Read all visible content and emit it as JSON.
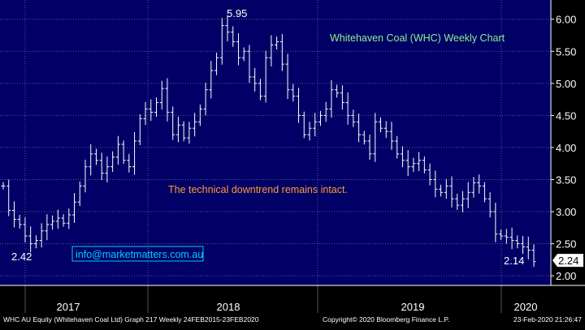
{
  "chart_data": {
    "type": "ohlc",
    "title": "Whitehaven Coal (WHC) Weekly Chart",
    "annotation": "The technical downtrend remains intact.",
    "contact": "info@marketmatters.com.au",
    "ylim": [
      1.85,
      6.3
    ],
    "y_ticks": [
      "2.00",
      "2.50",
      "3.00",
      "3.50",
      "4.00",
      "4.50",
      "5.00",
      "5.50",
      "6.00"
    ],
    "x_ticks": [
      "2017",
      "2018",
      "2019",
      "2020"
    ],
    "last_price": "2.24",
    "high_label": "5.95",
    "low_label_left": "2.42",
    "low_label_right": "2.14",
    "footer_left": "WHC AU Equity (Whitehaven Coal Ltd) Graph 217  Weekly 24FEB2015-23FEB2020",
    "footer_mid": "Copyright© 2020 Bloomberg Finance L.P.",
    "footer_right": "23-Feb-2020 21:26:47",
    "colors": {
      "background": "#000066",
      "bars": "#ffffff",
      "grid": "#5a5a9a",
      "title": "#90ee90",
      "annotation": "#ff9933",
      "contact": "#00ccff"
    },
    "series": [
      {
        "values": [
          3.4,
          3.02,
          2.88,
          2.8,
          2.62,
          2.5,
          2.55,
          2.7,
          2.8,
          2.85,
          2.9,
          2.82,
          2.95,
          3.15,
          3.4,
          3.7,
          3.9,
          3.8,
          3.6,
          3.7,
          3.85,
          4.05,
          3.8,
          3.7,
          4.1,
          4.45,
          4.6,
          4.55,
          4.7,
          4.92,
          4.55,
          4.2,
          4.35,
          4.15,
          4.3,
          4.4,
          4.6,
          4.9,
          5.2,
          5.4,
          5.9,
          5.8,
          5.65,
          5.4,
          5.5,
          5.1,
          5.0,
          4.8,
          5.4,
          5.6,
          5.65,
          5.3,
          4.9,
          4.8,
          4.5,
          4.2,
          4.3,
          4.4,
          4.5,
          4.6,
          4.9,
          4.85,
          4.7,
          4.5,
          4.4,
          4.2,
          4.1,
          3.9,
          4.4,
          4.3,
          4.25,
          4.1,
          3.9,
          3.8,
          3.7,
          3.75,
          3.8,
          3.65,
          3.5,
          3.35,
          3.3,
          3.4,
          3.2,
          3.1,
          3.2,
          3.3,
          3.45,
          3.4,
          3.2,
          3.0,
          2.65,
          2.62,
          2.6,
          2.55,
          2.5,
          2.45,
          2.4,
          2.22
        ]
      }
    ]
  }
}
